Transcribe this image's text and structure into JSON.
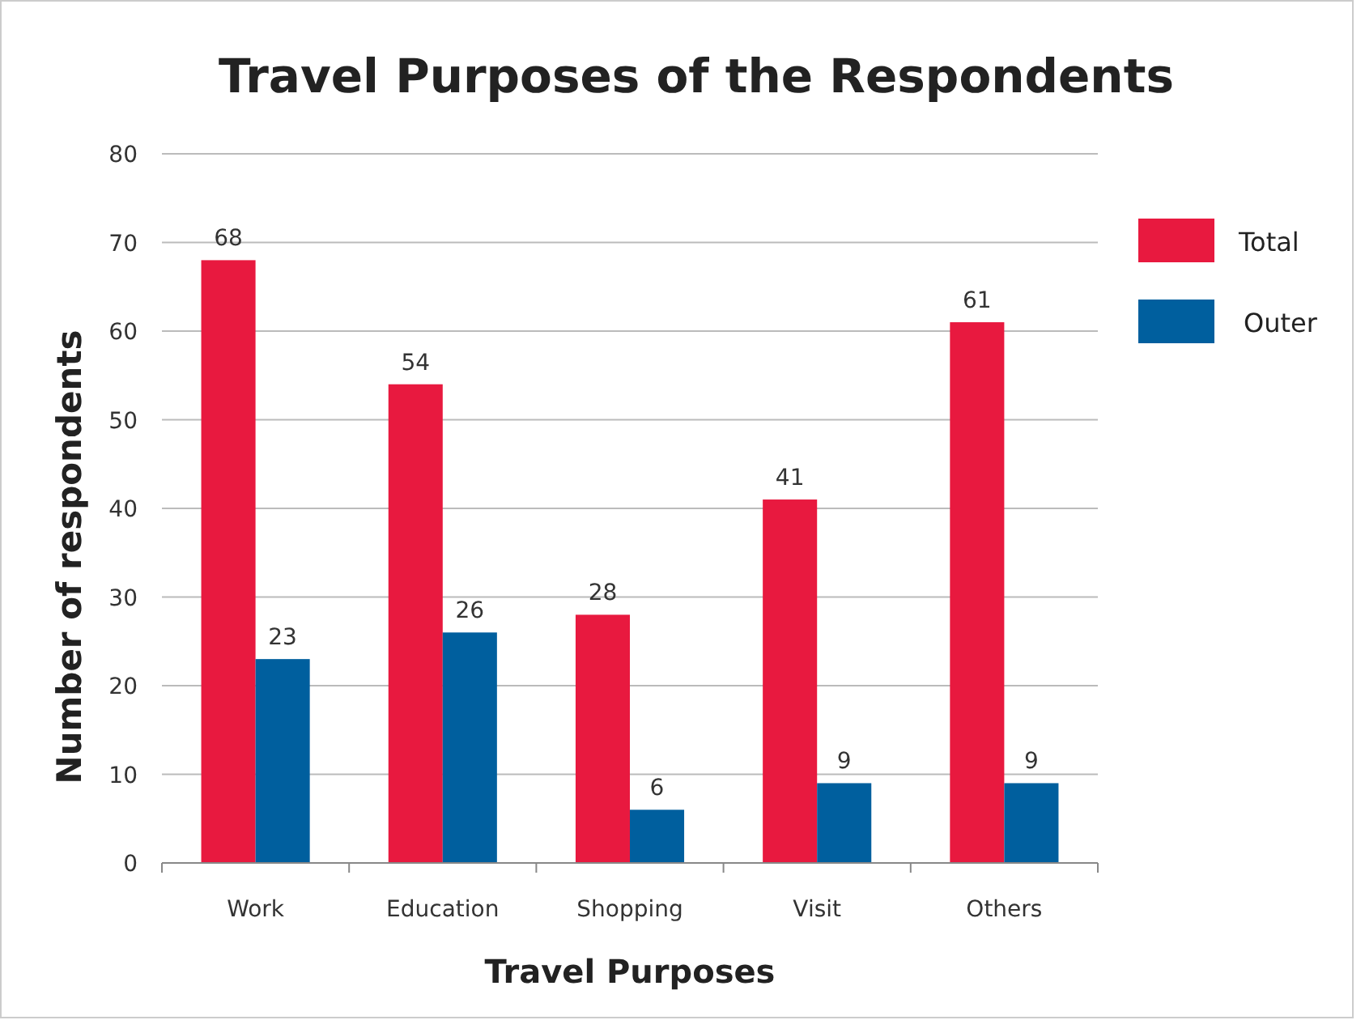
{
  "chart_data": {
    "type": "bar",
    "title": "Travel Purposes of  the Respondents",
    "xlabel": "Travel Purposes",
    "ylabel": "Number of respondents",
    "categories": [
      "Work",
      "Education",
      "Shopping",
      "Visit",
      "Others"
    ],
    "series": [
      {
        "name": "Total",
        "color": "#e8193f",
        "values": [
          68,
          54,
          28,
          41,
          61
        ]
      },
      {
        "name": "Outer",
        "color": "#005f9e",
        "values": [
          23,
          26,
          6,
          9,
          9
        ]
      }
    ],
    "ylim": [
      0,
      80
    ],
    "yticks": [
      0,
      10,
      20,
      30,
      40,
      50,
      60,
      70,
      80
    ],
    "grid": "y",
    "legend": "right",
    "data_labels": true
  }
}
